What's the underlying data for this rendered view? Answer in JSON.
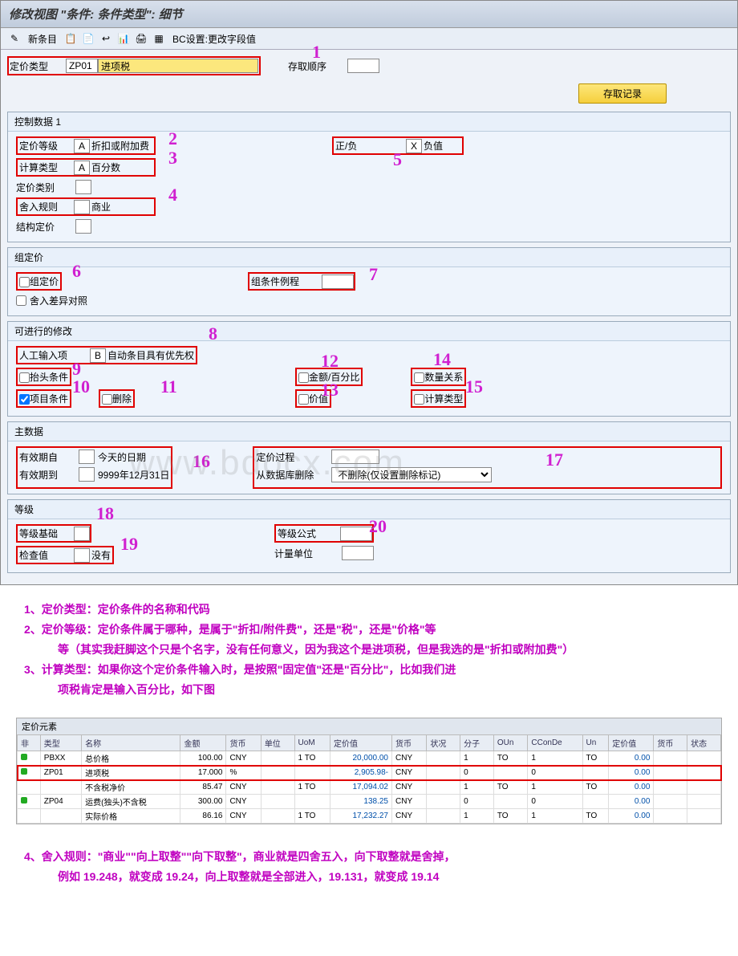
{
  "titleBar": "修改视图 \"条件: 条件类型\": 细节",
  "toolbar": {
    "newEntry": "新条目",
    "bcSetting": "BC设置:更改字段值"
  },
  "topRow": {
    "label_pricingType": "定价类型",
    "pricingType_code": "ZP01",
    "pricingType_name": "进项税",
    "label_accessSeq": "存取顺序",
    "btn_accessRecord": "存取记录"
  },
  "section1": {
    "title": "控制数据 1",
    "label_pricingClass": "定价等级",
    "pricingClass_code": "A",
    "pricingClass_text": "折扣或附加费",
    "label_calcType": "计算类型",
    "calcType_code": "A",
    "calcType_text": "百分数",
    "label_pricingCat": "定价类别",
    "label_roundRule": "舍入规则",
    "roundRule_text": "商业",
    "label_structPricing": "结构定价",
    "label_posNeg": "正/负",
    "posNeg_code": "X",
    "posNeg_text": "负值"
  },
  "section2": {
    "title": "组定价",
    "chk_groupPricing": "组定价",
    "chk_roundDiff": "舍入差异对照",
    "label_groupRoutine": "组条件例程"
  },
  "section3": {
    "title": "可进行的修改",
    "label_manualEntry": "人工输入项",
    "manualEntry_code": "B",
    "manualEntry_text": "自动条目具有优先权",
    "chk_header": "抬头条件",
    "chk_item": "项目条件",
    "chk_delete": "删除",
    "chk_amountPct": "金额/百分比",
    "chk_value": "价值",
    "chk_qtyRel": "数量关系",
    "chk_calcType": "计算类型"
  },
  "section4": {
    "title": "主数据",
    "label_validFrom": "有效期自",
    "validFrom_text": "今天的日期",
    "label_validTo": "有效期到",
    "validTo_text": "9999年12月31日",
    "label_pricingProc": "定价过程",
    "label_deleteFromDB": "从数据库删除",
    "deleteFromDB_value": "不删除(仅设置删除标记)"
  },
  "section5": {
    "title": "等级",
    "label_scaleBase": "等级基础",
    "label_checkValue": "检查值",
    "checkValue_text": "没有",
    "label_scaleFormula": "等级公式",
    "label_uom": "计量单位"
  },
  "annotations": {
    "a1": "1",
    "a2": "2",
    "a3": "3",
    "a4": "4",
    "a5": "5",
    "a6": "6",
    "a7": "7",
    "a8": "8",
    "a9": "9",
    "a10": "10",
    "a11": "11",
    "a12": "12",
    "a13": "13",
    "a14": "14",
    "a15": "15",
    "a16": "16",
    "a17": "17",
    "a18": "18",
    "a19": "19",
    "a20": "20"
  },
  "watermark": "www.bdocx.com",
  "notes": {
    "n1": "1、定价类型：定价条件的名称和代码",
    "n2": "2、定价等级：定价条件属于哪种，是属于\"折扣/附件费\"，还是\"税\"，还是\"价格\"等",
    "n2b": "等（其实我赶脚这个只是个名字，没有任何意义，因为我这个是进项税，但是我选的是\"折扣或附加费\"）",
    "n3": "3、计算类型：如果你这个定价条件输入时，是按照\"固定值\"还是\"百分比\"，比如我们进",
    "n3b": "项税肯定是输入百分比，如下图",
    "n4": "4、舍入规则：\"商业\"\"向上取整\"\"向下取整\"，商业就是四舍五入，向下取整就是舍掉，",
    "n4b": "例如 19.248，就变成 19.24，向上取整就是全部进入，19.131，就变成 19.14"
  },
  "pricingElements": {
    "header": "定价元素",
    "columns": [
      "非",
      "类型",
      "名称",
      "金额",
      "货币",
      "单位",
      "UoM",
      "定价值",
      "货币",
      "状况",
      "分子",
      "OUn",
      "CConDe",
      "Un",
      "定价值",
      "货币",
      "状态"
    ],
    "rows": [
      {
        "status": "g",
        "type": "PBXX",
        "name": "总价格",
        "amount": "100.00",
        "curr": "CNY",
        "unit": "",
        "uom": "1 TO",
        "priceVal": "20,000.00",
        "curr2": "CNY",
        "cond": "",
        "num": "1",
        "oun": "TO",
        "cconde": "1",
        "un": "TO",
        "pv2": "0.00",
        "curr3": "",
        "st": ""
      },
      {
        "status": "g",
        "type": "ZP01",
        "name": "进项税",
        "amount": "17.000",
        "curr": "%",
        "unit": "",
        "uom": "",
        "priceVal": "2,905.98-",
        "curr2": "CNY",
        "cond": "",
        "num": "0",
        "oun": "",
        "cconde": "0",
        "un": "",
        "pv2": "0.00",
        "curr3": "",
        "st": "",
        "red": true
      },
      {
        "status": "",
        "type": "",
        "name": "不含税净价",
        "amount": "85.47",
        "curr": "CNY",
        "unit": "",
        "uom": "1 TO",
        "priceVal": "17,094.02",
        "curr2": "CNY",
        "cond": "",
        "num": "1",
        "oun": "TO",
        "cconde": "1",
        "un": "TO",
        "pv2": "0.00",
        "curr3": "",
        "st": ""
      },
      {
        "status": "g",
        "type": "ZP04",
        "name": "运费(独头)不含税",
        "amount": "300.00",
        "curr": "CNY",
        "unit": "",
        "uom": "",
        "priceVal": "138.25",
        "curr2": "CNY",
        "cond": "",
        "num": "0",
        "oun": "",
        "cconde": "0",
        "un": "",
        "pv2": "0.00",
        "curr3": "",
        "st": ""
      },
      {
        "status": "",
        "type": "",
        "name": "实际价格",
        "amount": "86.16",
        "curr": "CNY",
        "unit": "",
        "uom": "1 TO",
        "priceVal": "17,232.27",
        "curr2": "CNY",
        "cond": "",
        "num": "1",
        "oun": "TO",
        "cconde": "1",
        "un": "TO",
        "pv2": "0.00",
        "curr3": "",
        "st": ""
      }
    ]
  }
}
